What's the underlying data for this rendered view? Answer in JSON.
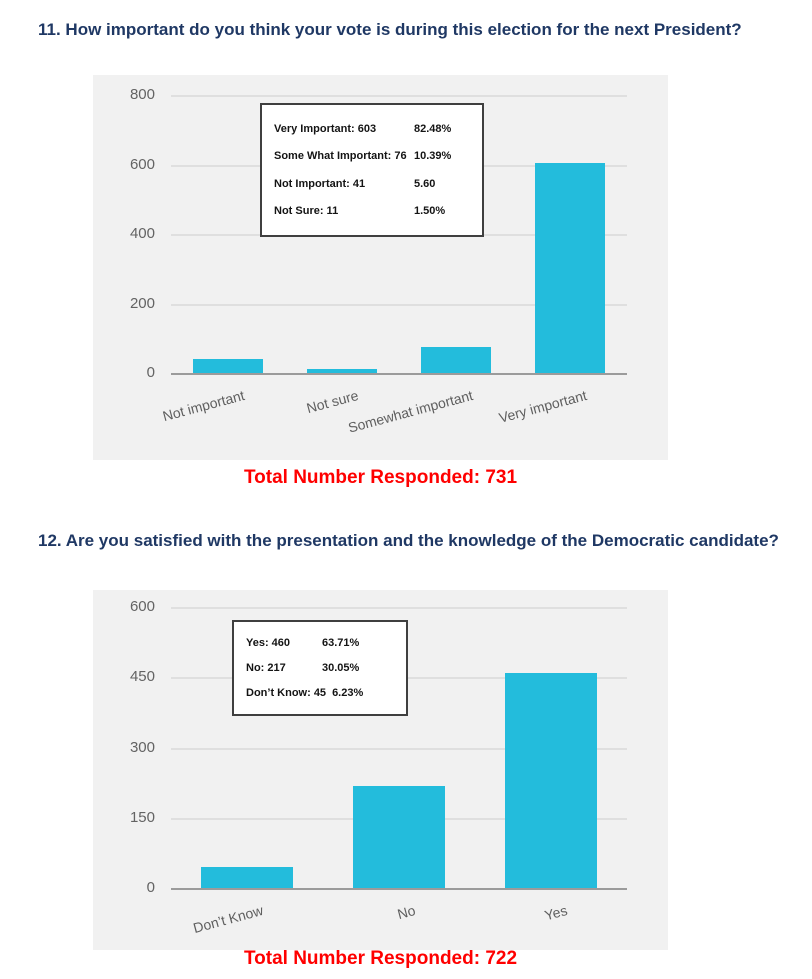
{
  "colors": {
    "question_title": "#1f3864",
    "total_text": "#ff0000",
    "bar_fill": "#23bcdc",
    "panel_bg": "#f1f1f1"
  },
  "questions": [
    {
      "title": "11. How important do you think your vote is during this election for the next President?"
    },
    {
      "title": "12. Are you satisfied with the presentation and the knowledge of the Democratic candidate?"
    }
  ],
  "chart_data": [
    {
      "type": "bar",
      "categories": [
        "Not important",
        "Not sure",
        "Somewhat important",
        "Very important"
      ],
      "values": [
        41,
        11,
        76,
        603
      ],
      "ylim": [
        0,
        800
      ],
      "yticks": [
        0,
        200,
        400,
        600,
        800
      ],
      "grid": true,
      "legend_position": "upper-left-inside",
      "legend": [
        {
          "label": "Very Important: 603",
          "value": "82.48%"
        },
        {
          "label": "Some What Important: 76",
          "value": "10.39%"
        },
        {
          "label": "Not Important: 41",
          "value": "5.60"
        },
        {
          "label": "Not Sure: 11",
          "value": "1.50%"
        }
      ],
      "total_label": "Total Number Responded: 731"
    },
    {
      "type": "bar",
      "categories": [
        "Don’t Know",
        "No",
        "Yes"
      ],
      "values": [
        45,
        217,
        460
      ],
      "ylim": [
        0,
        600
      ],
      "yticks": [
        0,
        150,
        300,
        450,
        600
      ],
      "grid": true,
      "legend_position": "upper-left-inside",
      "legend": [
        {
          "label": "Yes: 460",
          "value": "63.71%"
        },
        {
          "label": "No: 217",
          "value": "30.05%"
        },
        {
          "label": "Don’t Know: 45",
          "value": "6.23%"
        }
      ],
      "total_label": "Total Number Responded: 722"
    }
  ]
}
